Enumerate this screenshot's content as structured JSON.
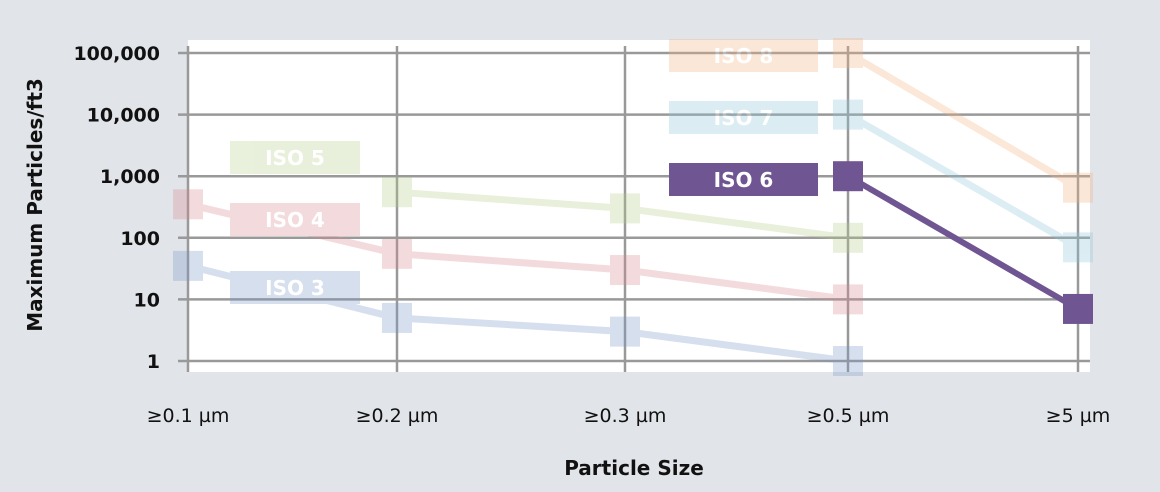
{
  "chart_data": {
    "type": "line",
    "title": "",
    "xlabel": "Particle Size",
    "ylabel": "Maximum Particles/ft3",
    "categories": [
      "≥0.1 µm",
      "≥0.2 µm",
      "≥0.3 µm",
      "≥0.5 µm",
      "≥5 µm"
    ],
    "y_scale": "log",
    "ylim": [
      1,
      100000
    ],
    "y_ticks": [
      1,
      10,
      100,
      1000,
      10000,
      100000
    ],
    "y_tick_labels": [
      "1",
      "10",
      "100",
      "1,000",
      "10,000",
      "100,000"
    ],
    "grid": true,
    "highlighted": "ISO 6",
    "series": [
      {
        "name": "ISO 3",
        "color": "#7b98c9",
        "values": [
          35,
          5,
          3,
          1,
          null
        ]
      },
      {
        "name": "ISO 4",
        "color": "#d98a92",
        "values": [
          350,
          55,
          30,
          10,
          null
        ]
      },
      {
        "name": "ISO 5",
        "color": "#b5cf8a",
        "values": [
          null,
          550,
          300,
          100,
          null
        ]
      },
      {
        "name": "ISO 6",
        "color": "#6f5592",
        "values": [
          null,
          null,
          null,
          1000,
          7
        ]
      },
      {
        "name": "ISO 7",
        "color": "#8cc6d9",
        "values": [
          null,
          null,
          null,
          10000,
          70
        ]
      },
      {
        "name": "ISO 8",
        "color": "#f5b27f",
        "values": [
          null,
          null,
          null,
          100000,
          650
        ]
      }
    ]
  }
}
